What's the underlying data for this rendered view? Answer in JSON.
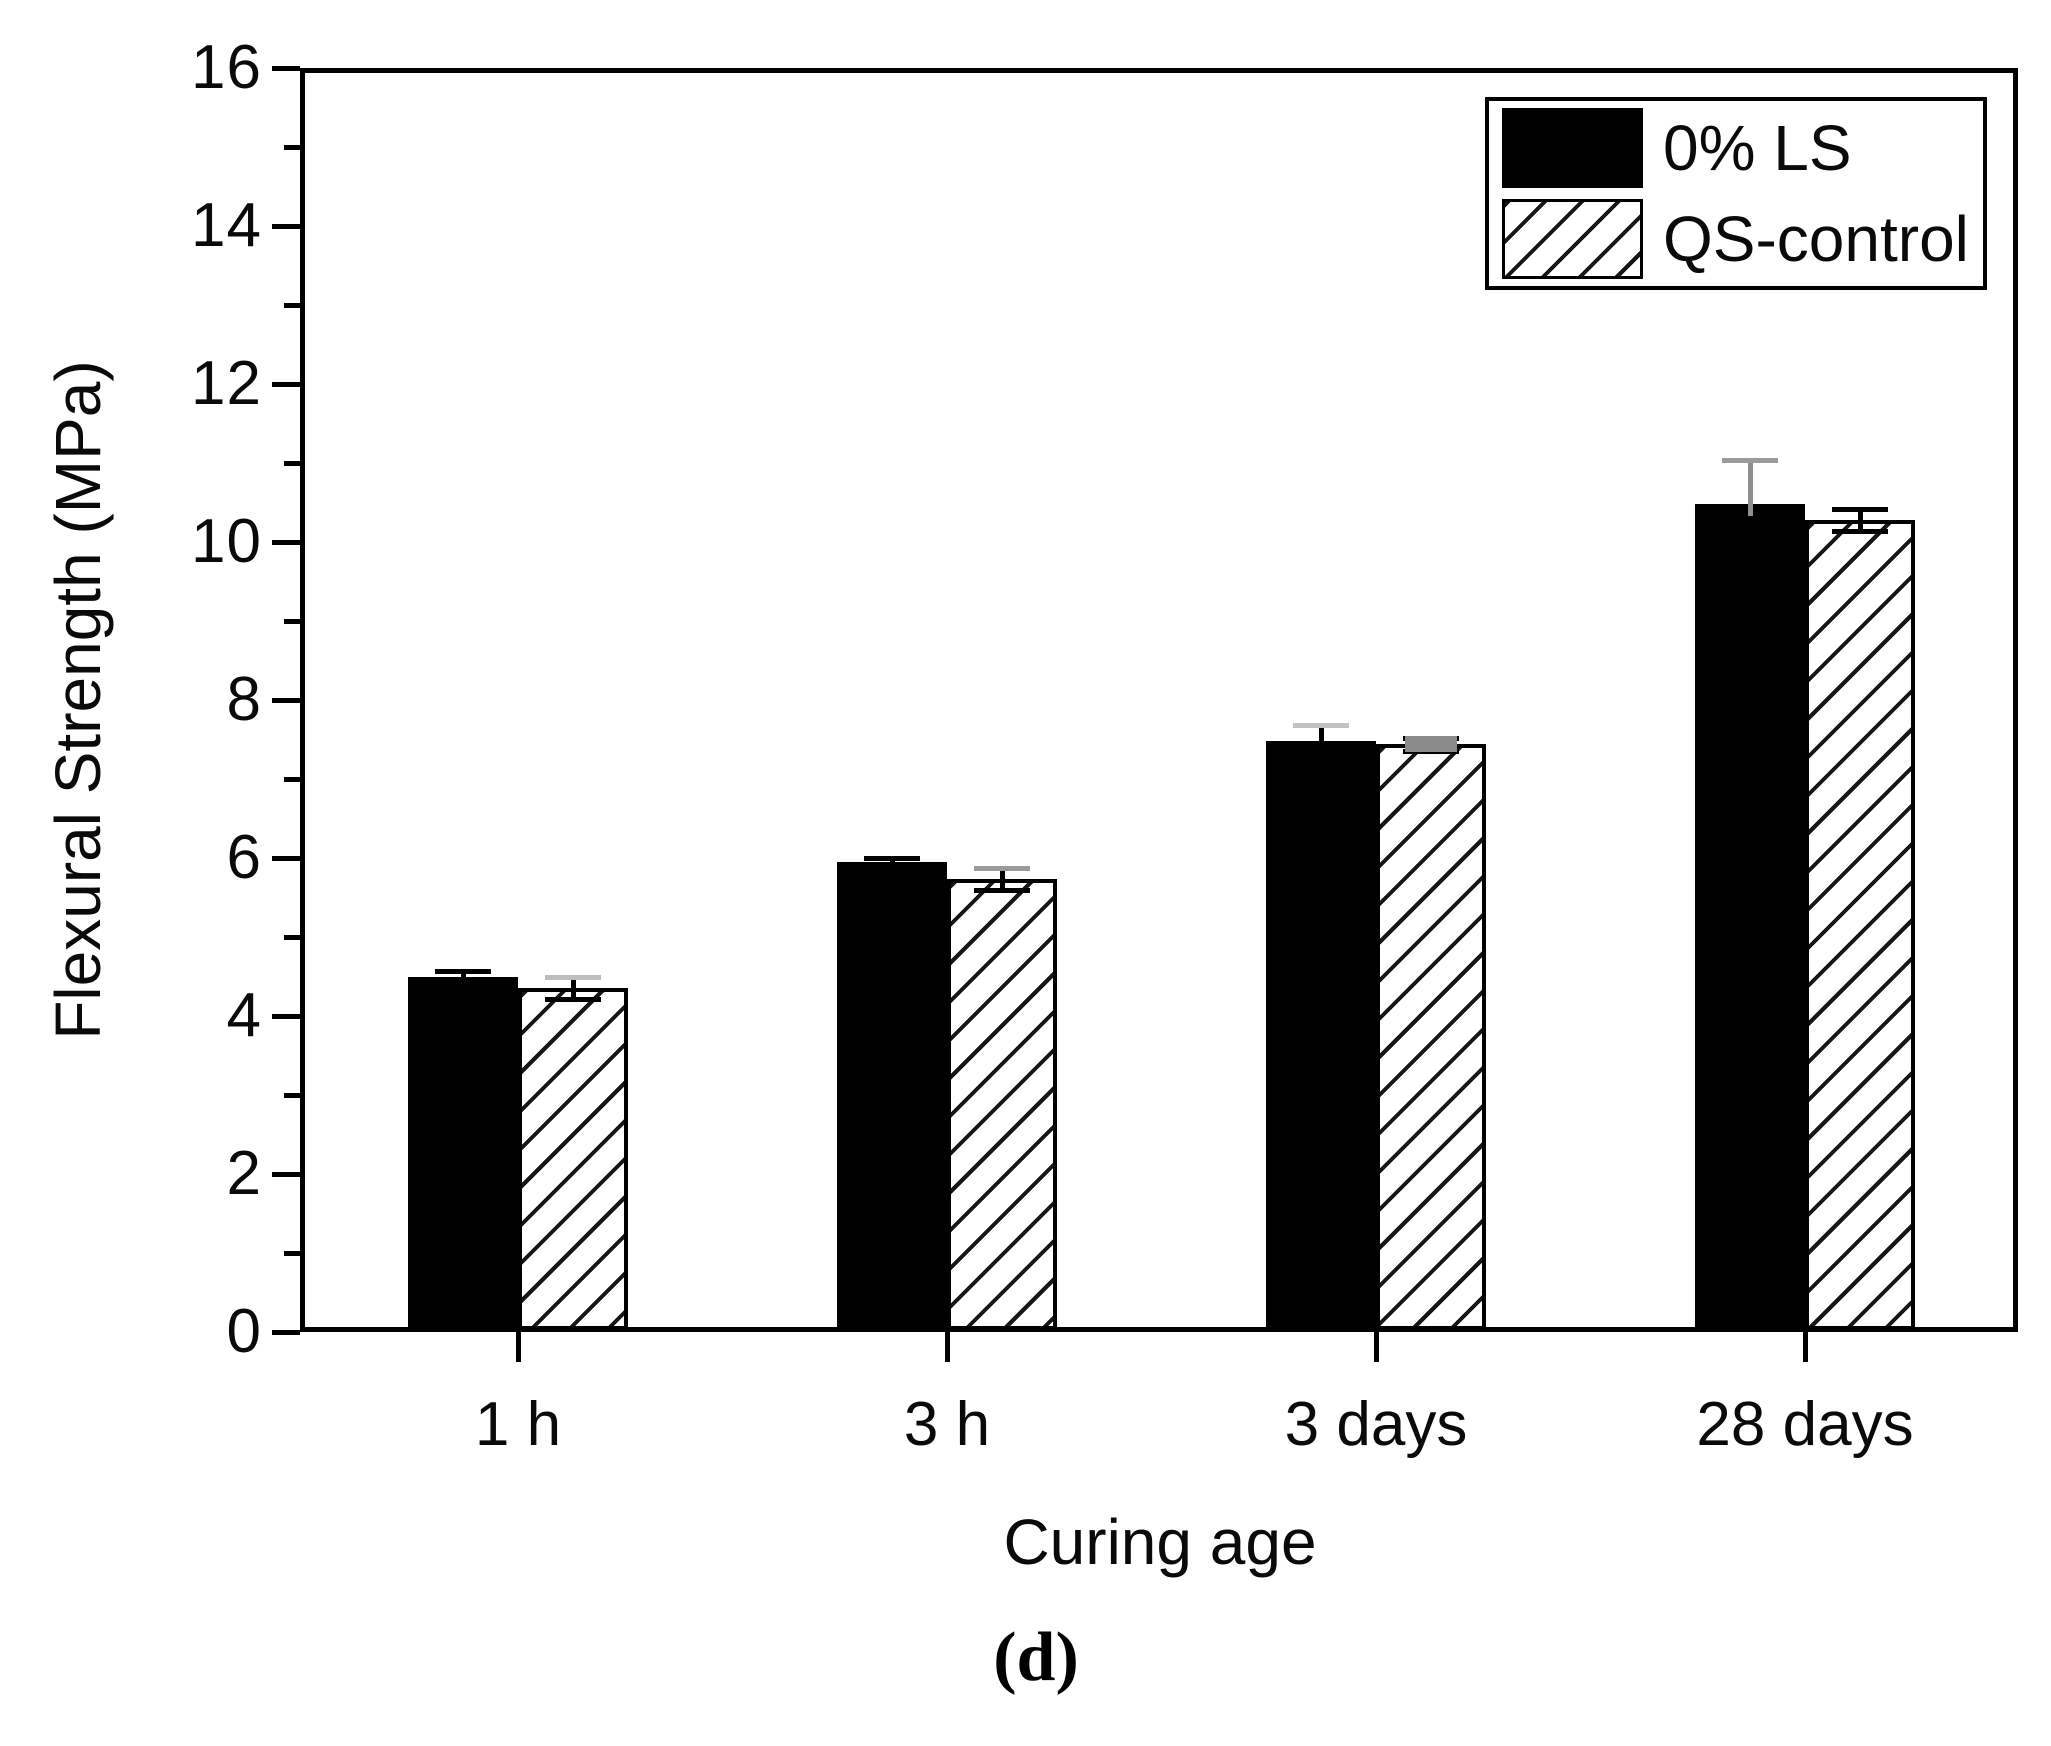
{
  "figure": {
    "caption": "(d)"
  },
  "colors": {
    "bar_fill": "#000000",
    "hatch_line": "#161616",
    "axis": "#000000",
    "gray_error_light": "#c2c2c2",
    "gray_error_dark": "#8a8a8a",
    "background": "#ffffff"
  },
  "chart_data": {
    "type": "bar",
    "title": "",
    "xlabel": "Curing age",
    "ylabel": "Flexural Strength (MPa)",
    "categories": [
      "1 h",
      "3 h",
      "3 days",
      "28 days"
    ],
    "series": [
      {
        "name": "0% LS",
        "pattern": "solid",
        "values": [
          4.49,
          5.95,
          7.48,
          10.48
        ],
        "errors": [
          0.08,
          0.05,
          0.2,
          0.56
        ],
        "error_styles": [
          {
            "line": "#000000",
            "cap_top": "#000000"
          },
          {
            "line": "#000000",
            "cap_top": "#000000"
          },
          {
            "line": "#000000",
            "cap_top": "#c2c2c2"
          },
          {
            "line": "#8f8f8f",
            "cap_top": "#9a9a9a"
          }
        ]
      },
      {
        "name": "QS-control",
        "pattern": "hatch",
        "values": [
          4.35,
          5.73,
          7.44,
          10.28
        ],
        "errors": [
          0.14,
          0.14,
          0.08,
          0.14
        ],
        "error_styles": [
          {
            "line": "#000000",
            "cap_top": "#bdbdbd",
            "cap_bottom": "#000000"
          },
          {
            "line": "#000000",
            "cap_top": "#9a9a9a",
            "cap_bottom": "#000000"
          },
          {
            "line": "#000000",
            "cap_top": "#000000",
            "cap_bottom": "#000000",
            "gray_box": true
          },
          {
            "line": "#000000",
            "cap_top": "#000000",
            "cap_bottom": "#000000"
          }
        ]
      }
    ],
    "ylim": [
      0,
      16
    ],
    "y_major_ticks": [
      0,
      2,
      4,
      6,
      8,
      10,
      12,
      14,
      16
    ],
    "y_minor_ticks": [
      1,
      3,
      5,
      7,
      9,
      11,
      13,
      15
    ],
    "grid": false,
    "legend_position": "top-right"
  }
}
